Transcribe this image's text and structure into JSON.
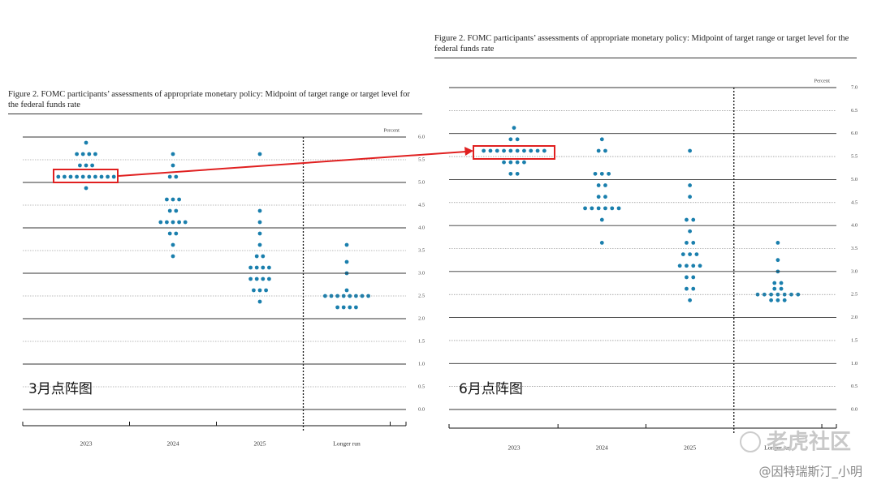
{
  "chart_data": [
    {
      "type": "dot",
      "title": "Figure 2.  FOMC participants’ assessments of appropriate monetary policy: Midpoint of target range or target level for the federal funds rate",
      "annotation": "3月点阵图",
      "ylabel": "Percent",
      "categories": [
        "2023",
        "2024",
        "2025",
        "Longer run"
      ],
      "values": [
        [
          5.875,
          5.625,
          5.625,
          5.625,
          5.625,
          5.375,
          5.375,
          5.375,
          5.125,
          5.125,
          5.125,
          5.125,
          5.125,
          5.125,
          5.125,
          5.125,
          5.125,
          5.125,
          4.875
        ],
        [
          5.625,
          5.375,
          5.125,
          5.125,
          4.625,
          4.625,
          4.625,
          4.375,
          4.375,
          4.125,
          4.125,
          4.125,
          4.125,
          4.125,
          3.875,
          3.875,
          3.625,
          3.375
        ],
        [
          5.625,
          4.375,
          4.125,
          3.875,
          3.625,
          3.375,
          3.375,
          3.125,
          3.125,
          3.125,
          3.125,
          2.875,
          2.875,
          2.875,
          2.875,
          2.625,
          2.625,
          2.625,
          2.375
        ],
        [
          3.625,
          3.25,
          3.0,
          2.625,
          2.5,
          2.5,
          2.5,
          2.5,
          2.5,
          2.5,
          2.5,
          2.5,
          2.25,
          2.25,
          2.25,
          2.25
        ]
      ],
      "color": "#1a7fad",
      "ylim": [
        0,
        6
      ],
      "yticks": [
        {
          "value": 0,
          "label": "0.0"
        },
        0.5,
        {
          "value": 1,
          "label": "1.0"
        },
        1.5,
        {
          "value": 2,
          "label": "2.0"
        },
        2.5,
        {
          "value": 3,
          "label": "3.0"
        },
        3.5,
        {
          "value": 4,
          "label": "4.0"
        },
        4.5,
        {
          "value": 5,
          "label": "5.0"
        },
        5.5,
        {
          "value": 6,
          "label": "6.0"
        }
      ],
      "grid": true
    },
    {
      "type": "dot",
      "title": "Figure 2.  FOMC participants’ assessments of appropriate monetary policy: Midpoint of target range or target level for the federal funds rate",
      "annotation": "6月点阵图",
      "ylabel": "Percent",
      "categories": [
        "2023",
        "2024",
        "2025",
        "Longer run"
      ],
      "values": [
        [
          6.125,
          5.875,
          5.875,
          5.625,
          5.625,
          5.625,
          5.625,
          5.625,
          5.625,
          5.625,
          5.625,
          5.625,
          5.625,
          5.375,
          5.375,
          5.375,
          5.375,
          5.125,
          5.125
        ],
        [
          5.875,
          5.625,
          5.625,
          5.125,
          5.125,
          5.125,
          4.875,
          4.875,
          4.625,
          4.625,
          4.375,
          4.375,
          4.375,
          4.375,
          4.375,
          4.375,
          4.125,
          3.625
        ],
        [
          5.625,
          4.875,
          4.625,
          4.125,
          4.125,
          3.875,
          3.625,
          3.625,
          3.375,
          3.375,
          3.375,
          3.125,
          3.125,
          3.125,
          3.125,
          2.875,
          2.875,
          2.625,
          2.625,
          2.375
        ],
        [
          3.625,
          3.25,
          3.0,
          2.75,
          2.75,
          2.625,
          2.625,
          2.5,
          2.5,
          2.5,
          2.5,
          2.5,
          2.5,
          2.5,
          2.375,
          2.375,
          2.375
        ]
      ],
      "color": "#1a7fad",
      "ylim": [
        0,
        7
      ],
      "yticks": [
        {
          "value": 0,
          "label": "0.0"
        },
        0.5,
        {
          "value": 1,
          "label": "1.0"
        },
        1.5,
        {
          "value": 2,
          "label": "2.0"
        },
        2.5,
        {
          "value": 3,
          "label": "3.0"
        },
        3.5,
        {
          "value": 4,
          "label": "4.0"
        },
        4.5,
        {
          "value": 5,
          "label": "5.0"
        },
        5.5,
        {
          "value": 6,
          "label": "6.0"
        },
        6.5,
        {
          "value": 7,
          "label": "7.0"
        }
      ],
      "grid": true
    }
  ],
  "watermark": [
    "老虎社区",
    "@因特瑞斯汀_小明"
  ]
}
